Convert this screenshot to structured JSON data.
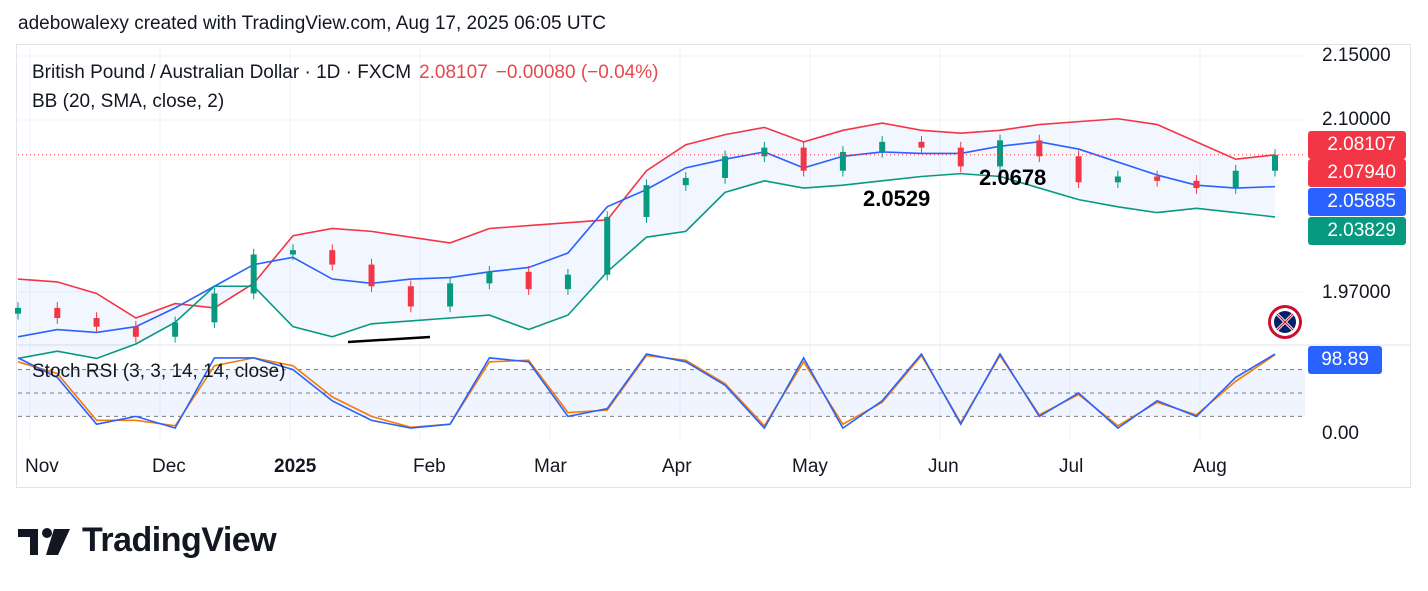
{
  "header": {
    "attribution": "adebowalexy created with TradingView.com, Aug 17, 2025 06:05 UTC"
  },
  "legend": {
    "symbol": "British Pound / Australian Dollar · 1D · FXCM",
    "price": "2.08107",
    "change": "−0.00080 (−0.04%)",
    "indicator": "BB (20, SMA, close, 2)",
    "oscillator": "Stoch RSI (3, 3, 14, 14, close)"
  },
  "price_axis": {
    "labels": [
      "2.15000",
      "2.10000",
      "1.97000"
    ],
    "tags": [
      {
        "text": "2.08107",
        "color": "#f23645"
      },
      {
        "text": "2.07940",
        "color": "#f23645"
      },
      {
        "text": "2.05885",
        "color": "#2962ff"
      },
      {
        "text": "2.03829",
        "color": "#089981"
      }
    ]
  },
  "osc_axis": {
    "tag": "98.89",
    "label_zero": "0.00"
  },
  "annotations": [
    "2.0529",
    "2.0678"
  ],
  "time_axis": [
    "Nov",
    "Dec",
    "2025",
    "Feb",
    "Mar",
    "Apr",
    "May",
    "Jun",
    "Jul",
    "Aug"
  ],
  "branding": {
    "name": "TradingView"
  },
  "chart_data": {
    "type": "candlestick",
    "series": [
      {
        "name": "BB upper",
        "color": "#f23645",
        "values": [
          1.995,
          1.993,
          1.985,
          1.968,
          1.978,
          1.975,
          1.992,
          2.025,
          2.03,
          2.028,
          2.024,
          2.02,
          2.03,
          2.032,
          2.034,
          2.036,
          2.07,
          2.088,
          2.095,
          2.1,
          2.09,
          2.098,
          2.103,
          2.098,
          2.096,
          2.098,
          2.102,
          2.104,
          2.106,
          2.102,
          2.09,
          2.078,
          2.081
        ]
      },
      {
        "name": "BB basis",
        "color": "#2962ff",
        "values": [
          1.955,
          1.96,
          1.958,
          1.962,
          1.975,
          1.99,
          2.005,
          2.01,
          1.995,
          1.992,
          1.995,
          1.996,
          2.0,
          2.003,
          2.013,
          2.045,
          2.057,
          2.072,
          2.078,
          2.083,
          2.072,
          2.08,
          2.083,
          2.082,
          2.082,
          2.087,
          2.09,
          2.085,
          2.076,
          2.067,
          2.06,
          2.058,
          2.059
        ]
      },
      {
        "name": "BB lower",
        "color": "#089981",
        "values": [
          1.94,
          1.945,
          1.94,
          1.95,
          1.965,
          1.99,
          1.99,
          1.962,
          1.955,
          1.964,
          1.966,
          1.968,
          1.97,
          1.96,
          1.97,
          2.0,
          2.024,
          2.028,
          2.055,
          2.063,
          2.058,
          2.06,
          2.063,
          2.066,
          2.068,
          2.066,
          2.058,
          2.05,
          2.045,
          2.041,
          2.044,
          2.041,
          2.038
        ]
      },
      {
        "name": "Close",
        "color": "#131722",
        "values": [
          1.975,
          1.968,
          1.962,
          1.955,
          1.965,
          1.985,
          2.012,
          2.015,
          2.005,
          1.99,
          1.976,
          1.992,
          2.0,
          1.988,
          1.998,
          2.038,
          2.06,
          2.065,
          2.08,
          2.086,
          2.07,
          2.083,
          2.09,
          2.086,
          2.073,
          2.091,
          2.08,
          2.062,
          2.066,
          2.063,
          2.058,
          2.07,
          2.081
        ]
      }
    ],
    "oscillator": {
      "name": "Stoch RSI",
      "k": [
        95,
        70,
        10,
        20,
        5,
        95,
        95,
        80,
        40,
        15,
        5,
        10,
        95,
        90,
        20,
        30,
        100,
        90,
        60,
        5,
        95,
        5,
        40,
        100,
        10,
        100,
        20,
        50,
        5,
        40,
        20,
        70,
        100
      ],
      "d": [
        90,
        75,
        15,
        15,
        8,
        85,
        95,
        85,
        45,
        20,
        6,
        10,
        90,
        92,
        25,
        28,
        98,
        92,
        62,
        8,
        90,
        10,
        38,
        98,
        12,
        98,
        22,
        48,
        8,
        38,
        22,
        65,
        99
      ]
    },
    "annotations": [
      {
        "x": "May",
        "y": 2.0529
      },
      {
        "x": "Jun",
        "y": 2.0678
      }
    ],
    "ylim": [
      1.95,
      2.155
    ],
    "xlim_labels": [
      "Nov",
      "Dec",
      "2025",
      "Feb",
      "Mar",
      "Apr",
      "May",
      "Jun",
      "Jul",
      "Aug"
    ],
    "grid": true
  }
}
